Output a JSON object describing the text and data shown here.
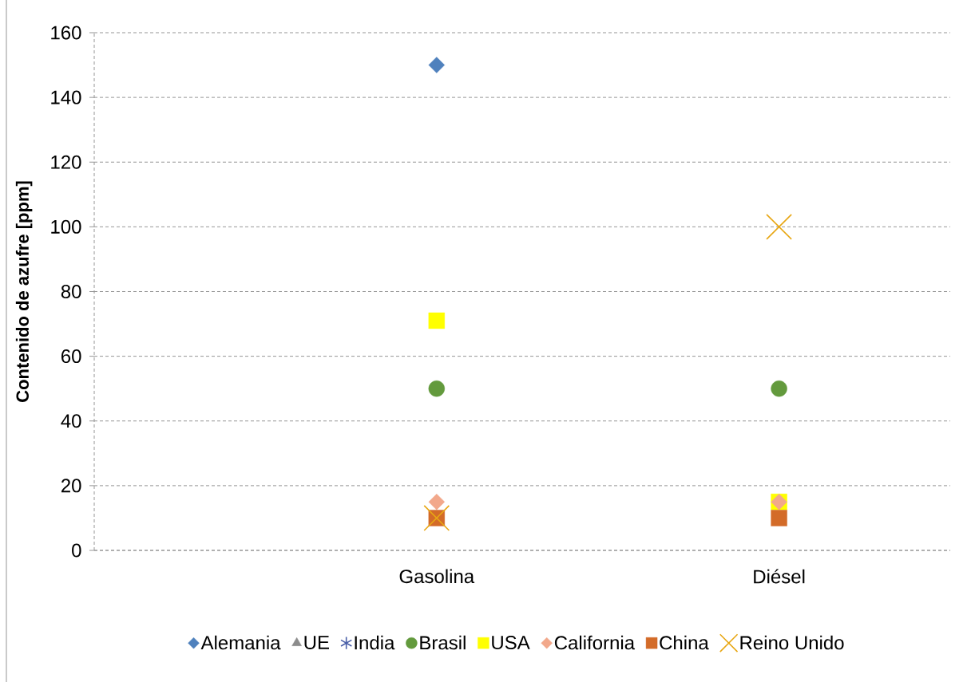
{
  "chart_data": {
    "type": "scatter",
    "ylabel": "Contenido de azufre [ppm]",
    "categories": [
      "Gasolina",
      "Diésel"
    ],
    "series": [
      {
        "name": "Alemania",
        "color": "#4f81bd",
        "marker": "diamond",
        "values": [
          150,
          null
        ]
      },
      {
        "name": "UE",
        "color": "#8c8c8c",
        "marker": "triangle",
        "values": [
          null,
          null
        ]
      },
      {
        "name": "India",
        "color": "#4a5fa8",
        "marker": "star",
        "values": [
          null,
          null
        ]
      },
      {
        "name": "Brasil",
        "color": "#639a3d",
        "marker": "circle",
        "values": [
          50,
          50
        ]
      },
      {
        "name": "USA",
        "color": "#ffff00",
        "marker": "square",
        "values": [
          71,
          15
        ]
      },
      {
        "name": "California",
        "color": "#f2a88b",
        "marker": "diamond",
        "values": [
          15,
          15
        ]
      },
      {
        "name": "China",
        "color": "#d36b28",
        "marker": "square",
        "values": [
          10,
          10
        ]
      },
      {
        "name": "Reino Unido",
        "color": "#e8a714",
        "marker": "cross",
        "values": [
          10,
          100
        ]
      }
    ],
    "ylim": [
      0,
      160
    ],
    "yticks": [
      0,
      20,
      40,
      60,
      80,
      100,
      120,
      140,
      160
    ],
    "grid": "y",
    "legend": "bottom"
  }
}
